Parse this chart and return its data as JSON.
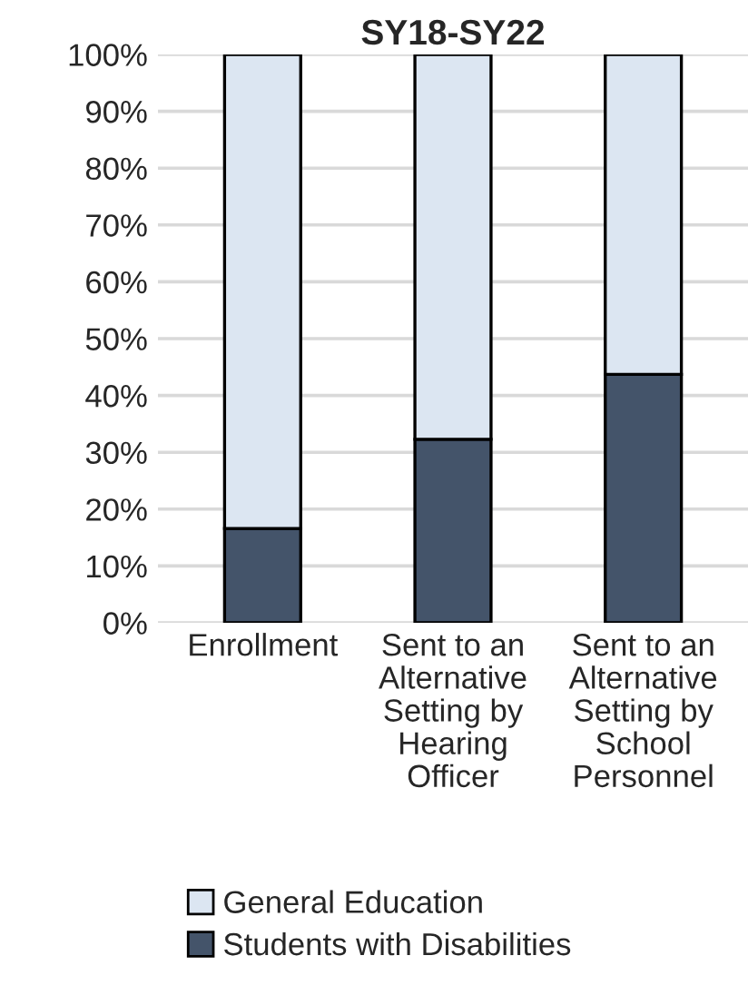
{
  "chart_data": {
    "type": "bar",
    "title": "SY18-SY22",
    "stacked": true,
    "categories": [
      "Enrollment",
      "Sent to an Alternative Setting by Hearing Officer",
      "Sent to an Alternative Setting by School Personnel"
    ],
    "series": [
      {
        "name": "Students with Disabilities",
        "color": "#44546a",
        "values": [
          16.6,
          32.3,
          43.7
        ]
      },
      {
        "name": "General Education",
        "color": "#dce6f2",
        "values": [
          83.4,
          67.7,
          56.3
        ]
      }
    ],
    "ylim": [
      0,
      100
    ],
    "yticks": [
      {
        "value": 0,
        "label": "0%"
      },
      {
        "value": 10,
        "label": "10%"
      },
      {
        "value": 20,
        "label": "20%"
      },
      {
        "value": 30,
        "label": "30%"
      },
      {
        "value": 40,
        "label": "40%"
      },
      {
        "value": 50,
        "label": "50%"
      },
      {
        "value": 60,
        "label": "60%"
      },
      {
        "value": 70,
        "label": "70%"
      },
      {
        "value": 80,
        "label": "80%"
      },
      {
        "value": 90,
        "label": "90%"
      },
      {
        "value": 100,
        "label": "100%"
      }
    ],
    "grid": "y",
    "legend": "bottom"
  }
}
